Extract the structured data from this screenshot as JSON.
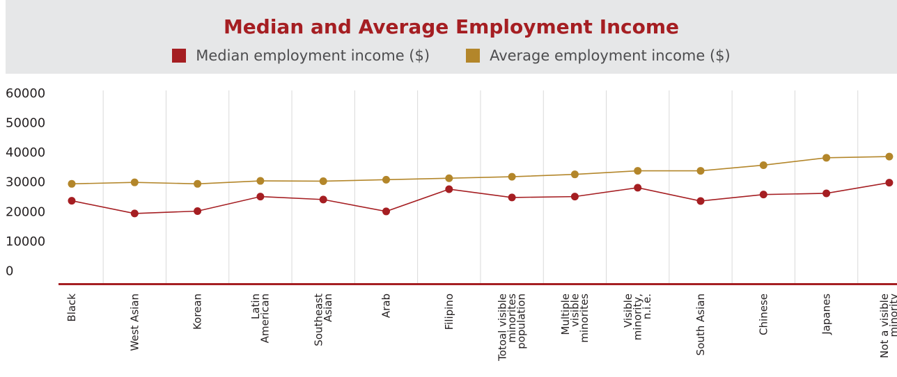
{
  "colors": {
    "median": "#a51e22",
    "average": "#b3862a",
    "header_bg": "#e6e7e8",
    "grid": "#d9d9d9",
    "axis": "#a51e22"
  },
  "chart_data": {
    "type": "line",
    "title": "Median and Average Employment Income",
    "categories": [
      "Black",
      "West Asian",
      "Korean",
      "Latin American",
      "Southeast Asian",
      "Arab",
      "Filipino",
      "Totoal visible minorites population",
      "Multiple visible minorites",
      "Visible minority, n.i.e.",
      "South Asian",
      "Chinese",
      "Japanes",
      "Not a visible minority"
    ],
    "category_lines": [
      [
        "Black"
      ],
      [
        "West Asian"
      ],
      [
        "Korean"
      ],
      [
        "Latin",
        "American"
      ],
      [
        "Southeast",
        "Asian"
      ],
      [
        "Arab"
      ],
      [
        "Filipino"
      ],
      [
        "Totoal visible",
        "minorites",
        "population"
      ],
      [
        "Multiple",
        "visible",
        "minorites"
      ],
      [
        "Visible",
        "minority,",
        "n.i.e."
      ],
      [
        "South Asian"
      ],
      [
        "Chinese"
      ],
      [
        "Japanes"
      ],
      [
        "Not a visible",
        "minority"
      ]
    ],
    "series": [
      {
        "name": "Median employment income ($)",
        "color": "#a51e22",
        "values": [
          25800,
          21500,
          22300,
          27200,
          26200,
          22200,
          29700,
          26900,
          27200,
          30200,
          25700,
          27900,
          28300,
          31900
        ]
      },
      {
        "name": "Average employment income ($)",
        "color": "#b3862a",
        "values": [
          31500,
          32000,
          31500,
          32500,
          32400,
          32900,
          33400,
          33900,
          34700,
          35900,
          35900,
          37800,
          40300,
          40700
        ]
      }
    ],
    "yticks": [
      0,
      10000,
      20000,
      30000,
      40000,
      50000,
      60000
    ],
    "ylim": [
      0,
      60000
    ],
    "grid": "vertical",
    "legend_position": "top-center",
    "xlabel": "",
    "ylabel": ""
  }
}
